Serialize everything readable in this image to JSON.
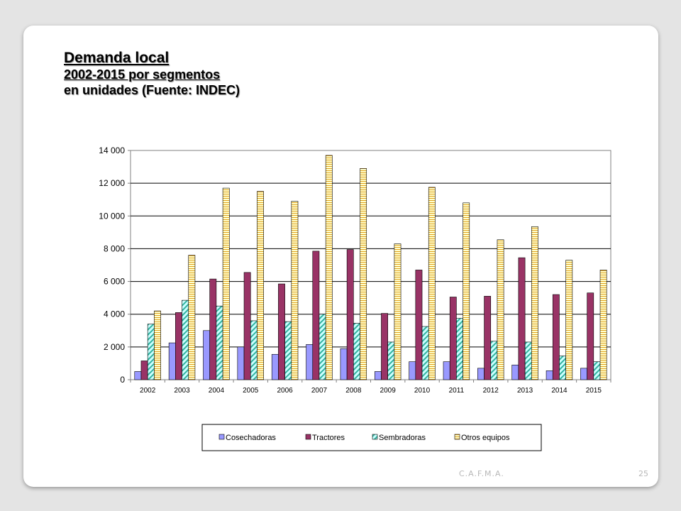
{
  "slide": {
    "title": "Demanda local",
    "subtitle": "2002-2015 por segmentos",
    "subtitle2": "en unidades (Fuente: INDEC)",
    "footer": "C.A.F.M.A.",
    "page_number": "25"
  },
  "colors": {
    "cosechadoras": "#9999ff",
    "tractores": "#993366",
    "sembradoras": "#ccffff",
    "sembradoras_stripe": "#33b3a0",
    "otros": "#ffffcc",
    "otros_stripe": "#e0a020"
  },
  "chart_data": {
    "type": "bar",
    "categories": [
      "2002",
      "2003",
      "2004",
      "2005",
      "2006",
      "2007",
      "2008",
      "2009",
      "2010",
      "2011",
      "2012",
      "2013",
      "2014",
      "2015"
    ],
    "series": [
      {
        "name": "Cosechadoras",
        "values": [
          500,
          2250,
          3000,
          2000,
          1550,
          2150,
          1900,
          500,
          1100,
          1100,
          700,
          900,
          550,
          700
        ]
      },
      {
        "name": "Tractores",
        "values": [
          1150,
          4100,
          6150,
          6550,
          5850,
          7850,
          7950,
          4050,
          6700,
          5050,
          5100,
          7450,
          5200,
          5300
        ]
      },
      {
        "name": "Sembradoras",
        "values": [
          3400,
          4850,
          4500,
          3600,
          3550,
          4000,
          3450,
          2300,
          3250,
          3750,
          2350,
          2300,
          1450,
          1100
        ]
      },
      {
        "name": "Otros equipos",
        "values": [
          4200,
          7600,
          11700,
          11500,
          10900,
          13700,
          12900,
          8300,
          11750,
          10800,
          8550,
          9350,
          7300,
          6700
        ]
      }
    ],
    "ylim": [
      0,
      14000
    ],
    "yticks": [
      "0",
      "2 000",
      "4 000",
      "6 000",
      "8 000",
      "10 000",
      "12 000",
      "14 000"
    ],
    "grid": true,
    "legend": "bottom"
  }
}
